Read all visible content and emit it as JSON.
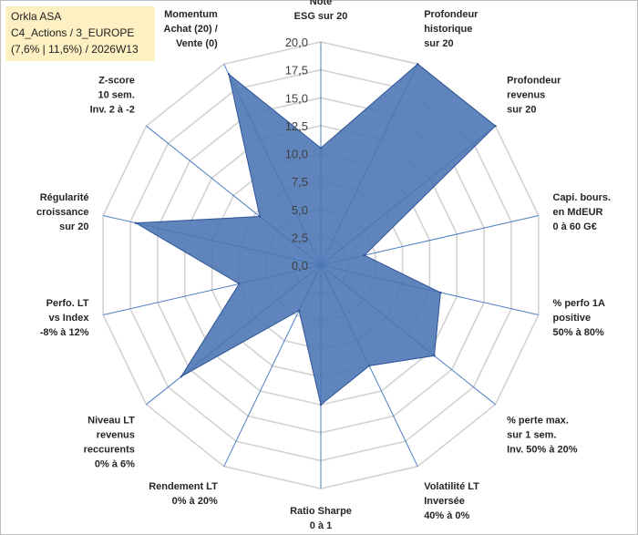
{
  "info": {
    "line1": "Orkla ASA",
    "line2": "C4_Actions / 3_EUROPE",
    "line3": "(7,6% | 11,6%) / 2026W13"
  },
  "colors": {
    "fill": "#4a74b4",
    "stroke": "#2f5597",
    "spoke": "#4f7fc4",
    "ring": "#d2d2d2"
  },
  "chart_data": {
    "type": "radar",
    "title": "",
    "rlim": [
      0,
      20
    ],
    "ticks": [
      "0,0",
      "2,5",
      "5,0",
      "7,5",
      "10,0",
      "12,5",
      "15,0",
      "17,5",
      "20,0"
    ],
    "tick_values": [
      0,
      2.5,
      5,
      7.5,
      10,
      12.5,
      15,
      17.5,
      20
    ],
    "categories": [
      [
        "Note",
        "ESG sur 20"
      ],
      [
        "Profondeur",
        "historique",
        "sur 20"
      ],
      [
        "Profondeur",
        "revenus",
        "sur 20"
      ],
      [
        "Capi. bours.",
        "en MdEUR",
        "0 à 60 G€"
      ],
      [
        "% perfo 1A",
        "positive",
        "50% à 80%"
      ],
      [
        "% perte max.",
        "sur 1 sem.",
        "Inv. 50% à 20%"
      ],
      [
        "Volatilité LT",
        "Inversée",
        "40% à 0%"
      ],
      [
        "Ratio Sharpe",
        "0 à 1"
      ],
      [
        "Rendement LT",
        "0% à 20%"
      ],
      [
        "Niveau LT",
        "revenus",
        "reccurents",
        "0% à 6%"
      ],
      [
        "Perfo. LT",
        "vs Index",
        "-8% à 12%"
      ],
      [
        "Régularité",
        "croissance",
        "sur 20"
      ],
      [
        "Z-score",
        "10 sem.",
        "Inv. 2 à -2"
      ],
      [
        "Momentum",
        "Achat (20) /",
        "Vente (0)"
      ]
    ],
    "series": [
      {
        "name": "Orkla ASA",
        "values": [
          10.5,
          20.0,
          20.0,
          4.0,
          11.0,
          13.0,
          10.0,
          12.5,
          4.5,
          16.0,
          7.5,
          17.0,
          7.0,
          19.0
        ]
      }
    ]
  }
}
